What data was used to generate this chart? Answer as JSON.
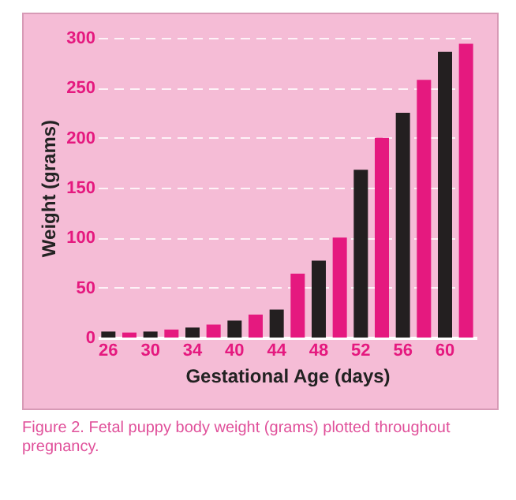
{
  "chart_data": {
    "type": "bar",
    "xlabel": "Gestational Age (days)",
    "ylabel": "Weight (grams)",
    "categories": [
      "26",
      null,
      "30",
      null,
      "34",
      null,
      "40",
      null,
      "44",
      null,
      "48",
      null,
      "52",
      null,
      "56",
      null,
      "60",
      null
    ],
    "values": [
      6,
      5,
      6,
      8,
      10,
      13,
      17,
      23,
      28,
      64,
      77,
      100,
      168,
      200,
      225,
      258,
      286,
      294
    ],
    "colors": [
      "#231f20",
      "#e5197f",
      "#231f20",
      "#e5197f",
      "#231f20",
      "#e5197f",
      "#231f20",
      "#e5197f",
      "#231f20",
      "#e5197f",
      "#231f20",
      "#e5197f",
      "#231f20",
      "#e5197f",
      "#231f20",
      "#e5197f",
      "#231f20",
      "#e5197f"
    ],
    "ylim": [
      0,
      300
    ],
    "yticks": [
      0,
      50,
      100,
      150,
      200,
      250,
      300
    ],
    "grid": "y",
    "annotations": [
      "Figure 2. Fetal puppy body weight (grams) plotted throughout pregnancy."
    ]
  }
}
